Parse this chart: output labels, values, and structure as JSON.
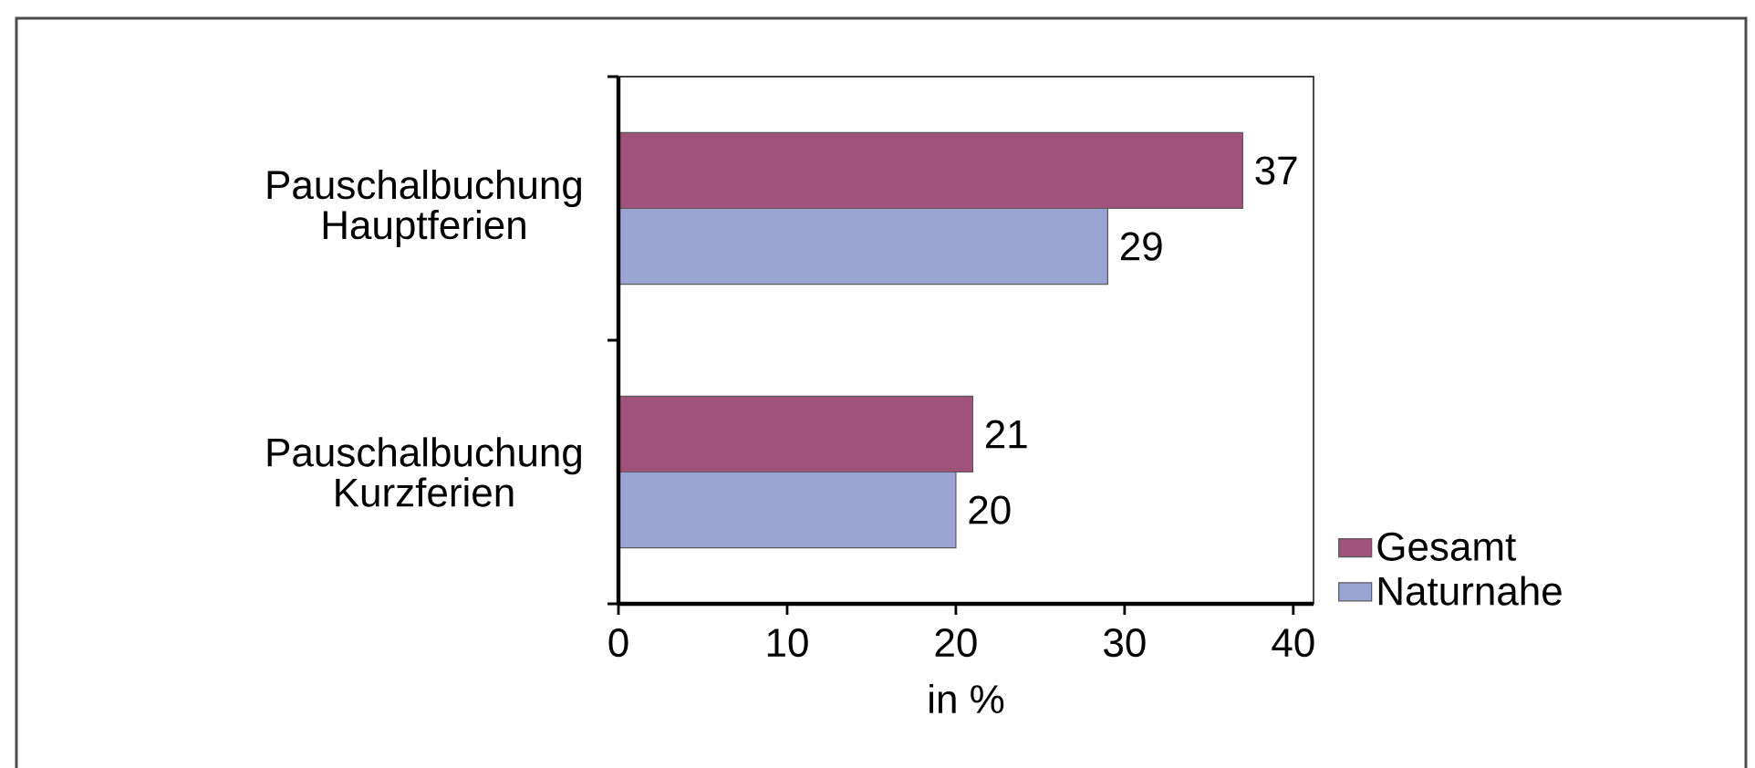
{
  "chart_data": {
    "type": "bar",
    "orientation": "horizontal",
    "xlabel": "in %",
    "categories": [
      "Pauschalbuchung Hauptferien",
      "Pauschalbuchung Kurzferien"
    ],
    "series": [
      {
        "name": "Gesamt",
        "color": "#a0537a",
        "values": [
          37,
          21
        ]
      },
      {
        "name": "Naturnahe",
        "color": "#9aa5d4",
        "values": [
          29,
          20
        ]
      }
    ],
    "xlim": [
      0,
      41.2
    ],
    "xticks": [
      0,
      10,
      20,
      30,
      40
    ],
    "data_labels": true,
    "legend": "bottom right"
  }
}
